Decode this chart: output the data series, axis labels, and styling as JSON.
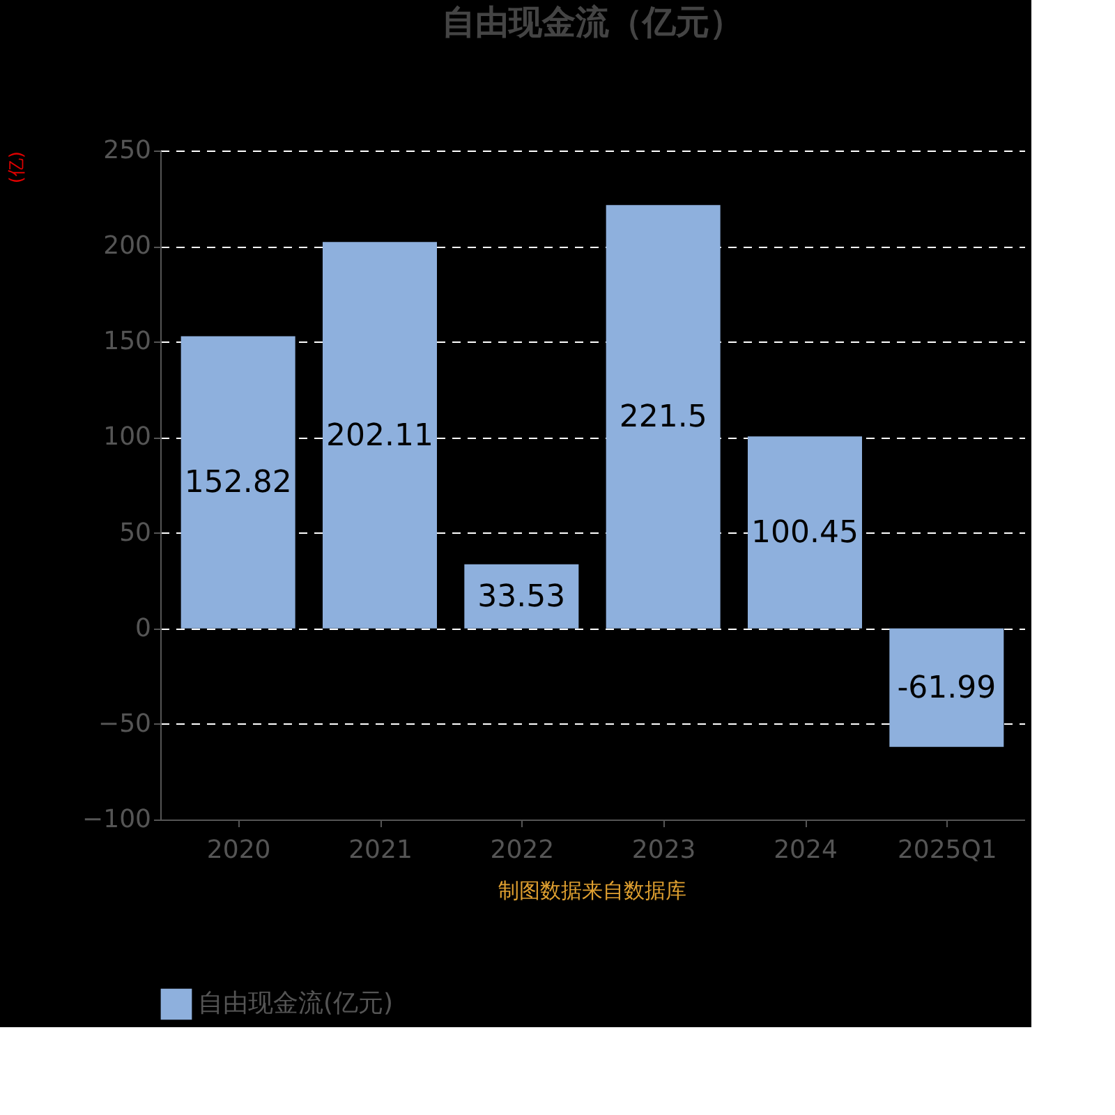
{
  "chart_data": {
    "type": "bar",
    "title": "自由现金流（亿元）",
    "ylabel": "(亿)",
    "categories": [
      "2020",
      "2021",
      "2022",
      "2023",
      "2024",
      "2025Q1"
    ],
    "series": [
      {
        "name": "自由现金流(亿元)",
        "color": "#8eb0dd",
        "values": [
          152.82,
          202.11,
          33.53,
          221.5,
          100.45,
          -61.99
        ]
      }
    ],
    "ylim": [
      -100,
      250
    ],
    "yticks": [
      -100,
      -50,
      0,
      50,
      100,
      150,
      200,
      250
    ],
    "grid": "y",
    "legend": "bottom",
    "data_labels": true,
    "annotations": [
      "制图数据来自数据库"
    ]
  }
}
